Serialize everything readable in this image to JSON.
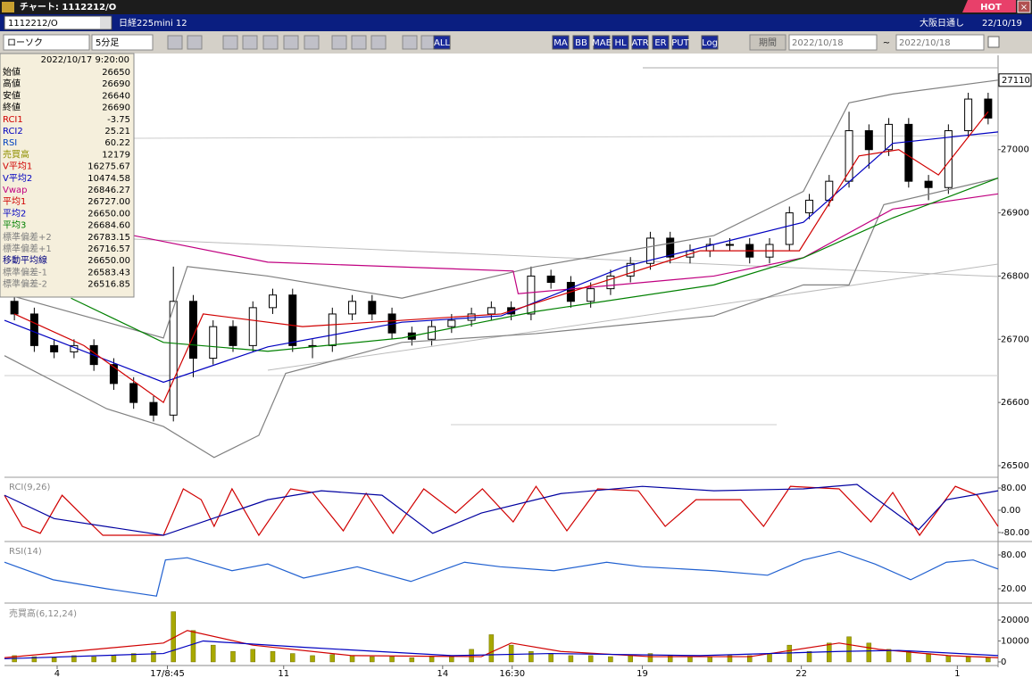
{
  "window": {
    "title": "チャート: 1112212/O",
    "badge": "HOT"
  },
  "header": {
    "symbol": "1112212/O",
    "name": "日経225mini 12",
    "session": "大阪日通し",
    "date": "22/10/19"
  },
  "toolbar": {
    "chart_type": "ローソク",
    "interval": "5分足",
    "buttons": [
      "ALL",
      "MA",
      "BB",
      "MAE",
      "HL",
      "ATR",
      "ER",
      "PUT",
      "Log"
    ],
    "period_button": "期間",
    "from": "2022/10/18",
    "separator": "~",
    "to": "2022/10/18"
  },
  "info_panel": {
    "datetime": "2022/10/17 9:20:00",
    "rows": [
      {
        "label": "始値",
        "value": "26650",
        "color": "#000000"
      },
      {
        "label": "高値",
        "value": "26690",
        "color": "#000000"
      },
      {
        "label": "安値",
        "value": "26640",
        "color": "#000000"
      },
      {
        "label": "終値",
        "value": "26690",
        "color": "#000000"
      },
      {
        "label": "RCI1",
        "value": "-3.75",
        "color": "#d00000"
      },
      {
        "label": "RCI2",
        "value": "25.21",
        "color": "#0000c0"
      },
      {
        "label": "RSI",
        "value": "60.22",
        "color": "#0040c0"
      },
      {
        "label": "売買高",
        "value": "12179",
        "color": "#909000"
      },
      {
        "label": "V平均1",
        "value": "16275.67",
        "color": "#d00000"
      },
      {
        "label": "V平均2",
        "value": "10474.58",
        "color": "#0000c0"
      },
      {
        "label": "Vwap",
        "value": "26846.27",
        "color": "#c00080"
      },
      {
        "label": "平均1",
        "value": "26727.00",
        "color": "#d00000"
      },
      {
        "label": "平均2",
        "value": "26650.00",
        "color": "#0000c0"
      },
      {
        "label": "平均3",
        "value": "26684.60",
        "color": "#008000"
      },
      {
        "label": "標準偏差+2",
        "value": "26783.15",
        "color": "#808080"
      },
      {
        "label": "標準偏差+1",
        "value": "26716.57",
        "color": "#808080"
      },
      {
        "label": "移動平均線",
        "value": "26650.00",
        "color": "#000080"
      },
      {
        "label": "標準偏差-1",
        "value": "26583.43",
        "color": "#808080"
      },
      {
        "label": "標準偏差-2",
        "value": "26516.85",
        "color": "#808080"
      }
    ]
  },
  "chart_data": [
    {
      "type": "candlestick",
      "xlim": [
        0,
        100
      ],
      "ylim": [
        26500,
        27145
      ],
      "yticks": [
        26500,
        26600,
        26700,
        26800,
        26900,
        27000
      ],
      "last_price": 27110,
      "up_color": "#ffffff",
      "down_color": "#000000",
      "candles": {
        "x": [
          1,
          3,
          5,
          7,
          9,
          11,
          13,
          15,
          17,
          19,
          21,
          23,
          25,
          27,
          29,
          31,
          33,
          35,
          37,
          39,
          41,
          43,
          45,
          47,
          49,
          51,
          53,
          55,
          57,
          59,
          61,
          63,
          65,
          67,
          69,
          71,
          73,
          75,
          77,
          79,
          81,
          83,
          85,
          87,
          89,
          91,
          93,
          95,
          97,
          99
        ],
        "open": [
          26760,
          26740,
          26690,
          26680,
          26690,
          26660,
          26630,
          26600,
          26580,
          26760,
          26670,
          26720,
          26690,
          26750,
          26770,
          26690,
          26690,
          26740,
          26760,
          26740,
          26710,
          26700,
          26720,
          26730,
          26740,
          26750,
          26740,
          26800,
          26790,
          26760,
          26780,
          26800,
          26820,
          26860,
          26830,
          26840,
          26850,
          26850,
          26830,
          26850,
          26900,
          26920,
          26950,
          27030,
          27000,
          27040,
          26950,
          26940,
          27030,
          27080
        ],
        "high": [
          26770,
          26750,
          26700,
          26700,
          26700,
          26670,
          26640,
          26610,
          26815,
          26770,
          26730,
          26730,
          26760,
          26780,
          26780,
          26700,
          26750,
          26770,
          26770,
          26750,
          26720,
          26730,
          26740,
          26750,
          26760,
          26760,
          26815,
          26810,
          26800,
          26790,
          26810,
          26830,
          26870,
          26870,
          26850,
          26860,
          26860,
          26860,
          26860,
          26910,
          26930,
          26960,
          27060,
          27040,
          27050,
          27050,
          26960,
          27040,
          27090,
          27090
        ],
        "low": [
          26730,
          26680,
          26670,
          26670,
          26650,
          26620,
          26590,
          26570,
          26570,
          26640,
          26660,
          26680,
          26680,
          26740,
          26680,
          26670,
          26680,
          26730,
          26730,
          26700,
          26690,
          26690,
          26710,
          26720,
          26730,
          26730,
          26730,
          26780,
          26750,
          26750,
          26770,
          26790,
          26810,
          26820,
          26820,
          26830,
          26840,
          26820,
          26820,
          26840,
          26890,
          26910,
          26940,
          26970,
          26990,
          26940,
          26920,
          26930,
          27020,
          27040
        ],
        "close": [
          26740,
          26690,
          26680,
          26690,
          26660,
          26630,
          26600,
          26580,
          26760,
          26670,
          26720,
          26690,
          26750,
          26770,
          26690,
          26690,
          26740,
          26760,
          26740,
          26710,
          26700,
          26720,
          26730,
          26740,
          26750,
          26740,
          26800,
          26790,
          26760,
          26780,
          26800,
          26820,
          26860,
          26830,
          26840,
          26850,
          26850,
          26830,
          26850,
          26900,
          26920,
          26950,
          27030,
          27000,
          27040,
          26950,
          26940,
          27030,
          27080,
          27050
        ]
      },
      "lines": [
        {
          "color": "#808080",
          "x": [
            0,
            16,
            18.4,
            26.5,
            40,
            53.5,
            71.4,
            80.4,
            85,
            89.4,
            100
          ],
          "values": [
            26772,
            26702,
            26815,
            26800,
            26765,
            26815,
            26864,
            26934,
            27074,
            27088,
            27110
          ]
        },
        {
          "color": "#808080",
          "x": [
            0,
            10.3,
            16,
            21.1,
            25.6,
            28.3,
            40,
            53.5,
            71.4,
            80.4,
            85,
            88.5,
            100
          ],
          "values": [
            26674,
            26590,
            26562,
            26513,
            26548,
            26646,
            26695,
            26709,
            26737,
            26786,
            26786,
            26913,
            26955
          ]
        },
        {
          "color": "#c00080",
          "x": [
            0,
            13,
            26.5,
            51.2,
            51.7,
            71.4,
            80.4,
            89.4,
            100
          ],
          "values": [
            26868,
            26864,
            26822,
            26808,
            26772,
            26800,
            26829,
            26906,
            26930
          ]
        },
        {
          "color": "#008000",
          "x": [
            6.7,
            16,
            26.5,
            40,
            53.5,
            71.4,
            80.4,
            89.4,
            100
          ],
          "values": [
            26765,
            26695,
            26681,
            26702,
            26744,
            26786,
            26829,
            26892,
            26955
          ]
        },
        {
          "color": "#0000c0",
          "x": [
            0,
            16,
            26.5,
            40,
            50,
            62.4,
            71.4,
            80.4,
            89.4,
            100
          ],
          "values": [
            26730,
            26632,
            26688,
            26727,
            26737,
            26815,
            26850,
            26885,
            27010,
            27028
          ]
        },
        {
          "color": "#d00000",
          "x": [
            1,
            8,
            16,
            20,
            30,
            40,
            50,
            60,
            70,
            80,
            86,
            90,
            94,
            99
          ],
          "values": [
            26740,
            26690,
            26600,
            26740,
            26720,
            26730,
            26740,
            26790,
            26840,
            26840,
            26990,
            27000,
            26960,
            27060
          ]
        }
      ]
    },
    {
      "type": "line",
      "label": "RCI(9,26)",
      "xlim": [
        0,
        100
      ],
      "ylim": [
        -106,
        109
      ],
      "yticks": [
        {
          "value": 80,
          "label": "80.00"
        },
        {
          "value": 0,
          "label": "0.00"
        },
        {
          "value": -80,
          "label": "-80.00"
        }
      ],
      "lines": [
        {
          "color": "#d00000",
          "x": [
            0,
            1.8,
            3.6,
            5.8,
            7.6,
            9.9,
            13.9,
            16,
            18,
            19.8,
            21.1,
            22.9,
            25.6,
            28.8,
            31,
            34.1,
            36.4,
            39.1,
            42.2,
            45.4,
            48.1,
            51.2,
            53.5,
            56.6,
            59.7,
            63.8,
            66.5,
            69.6,
            74.1,
            76.4,
            79.1,
            84,
            87.2,
            89.4,
            92.1,
            95.7,
            97.9,
            100
          ],
          "values": [
            54,
            -58,
            -83,
            54,
            -10,
            -90,
            -90,
            -90,
            77,
            38,
            -58,
            77,
            -90,
            77,
            64,
            -74,
            61,
            -83,
            77,
            -10,
            77,
            -42,
            86,
            -74,
            77,
            70,
            -58,
            38,
            38,
            -58,
            86,
            77,
            -42,
            64,
            -90,
            86,
            54,
            -58
          ]
        },
        {
          "color": "#0000a0",
          "x": [
            0,
            5,
            16,
            26.5,
            31.9,
            38,
            43.1,
            48,
            56,
            64.2,
            71.4,
            80.4,
            85.8,
            92,
            94.8,
            100
          ],
          "values": [
            54,
            -30,
            -90,
            38,
            70,
            54,
            -83,
            -10,
            60,
            86,
            70,
            77,
            93,
            -70,
            38,
            70
          ]
        }
      ]
    },
    {
      "type": "line",
      "label": "RSI(14)",
      "xlim": [
        0,
        100
      ],
      "ylim": [
        1,
        99
      ],
      "yticks": [
        {
          "value": 80,
          "label": "80.00"
        },
        {
          "value": 20,
          "label": "20.00"
        }
      ],
      "lines": [
        {
          "color": "#2060d0",
          "x": [
            0,
            4.9,
            10.3,
            15.3,
            16.2,
            18.4,
            22.9,
            26.5,
            30.1,
            35.5,
            40.9,
            46.3,
            49.9,
            55.3,
            60.6,
            64.2,
            71.4,
            76.8,
            80.4,
            84,
            87.6,
            91.2,
            94.8,
            97.5,
            100
          ],
          "values": [
            67,
            36,
            20,
            7,
            71,
            75,
            52,
            64,
            39,
            59,
            33,
            67,
            59,
            52,
            67,
            59,
            52,
            44,
            71,
            86,
            64,
            36,
            67,
            71,
            55
          ]
        }
      ]
    },
    {
      "type": "bar",
      "label": "売買高(6,12,24)",
      "color": "#a8a800",
      "xlim": [
        0,
        100
      ],
      "ylim": [
        -1300,
        26400
      ],
      "yticks": [
        20000,
        10000,
        0
      ],
      "xticks": [
        {
          "value": 5.3,
          "label": "4"
        },
        {
          "value": 16.4,
          "label": "17/8:45"
        },
        {
          "value": 28.1,
          "label": "11"
        },
        {
          "value": 44.1,
          "label": "14"
        },
        {
          "value": 51.1,
          "label": "16:30"
        },
        {
          "value": 64.2,
          "label": "19"
        },
        {
          "value": 80.2,
          "label": "22"
        },
        {
          "value": 95.9,
          "label": "1"
        }
      ],
      "x": [
        1,
        3,
        5,
        7,
        9,
        11,
        13,
        15,
        17,
        19,
        21,
        23,
        25,
        27,
        29,
        31,
        33,
        35,
        37,
        39,
        41,
        43,
        45,
        47,
        49,
        51,
        53,
        55,
        57,
        59,
        61,
        63,
        65,
        67,
        69,
        71,
        73,
        75,
        77,
        79,
        81,
        83,
        85,
        87,
        89,
        91,
        93,
        95,
        97,
        99
      ],
      "values": [
        3000,
        2500,
        2000,
        3000,
        2500,
        3000,
        4000,
        5000,
        24000,
        15000,
        8000,
        5000,
        6000,
        5000,
        4000,
        3000,
        3500,
        3000,
        2500,
        2500,
        2000,
        2500,
        3000,
        6000,
        13000,
        8000,
        5000,
        4000,
        3000,
        3000,
        2500,
        3000,
        4000,
        3000,
        2500,
        2500,
        3000,
        3000,
        4000,
        8000,
        5000,
        9000,
        12000,
        9000,
        6000,
        5000,
        4000,
        3000,
        2500,
        2000
      ],
      "lines": [
        {
          "color": "#d00000",
          "x": [
            0,
            16,
            18.4,
            25,
            35,
            48,
            51,
            56,
            65,
            75,
            84,
            88,
            95,
            100
          ],
          "values": [
            2000,
            9000,
            15000,
            8000,
            3000,
            2500,
            9000,
            5000,
            2500,
            2500,
            9000,
            6000,
            3000,
            2000
          ]
        },
        {
          "color": "#0000c0",
          "x": [
            0,
            16,
            20,
            30,
            45,
            55,
            70,
            84,
            90,
            100
          ],
          "values": [
            1500,
            4000,
            10000,
            7000,
            3000,
            4000,
            3000,
            5000,
            5500,
            3000
          ]
        }
      ]
    }
  ]
}
